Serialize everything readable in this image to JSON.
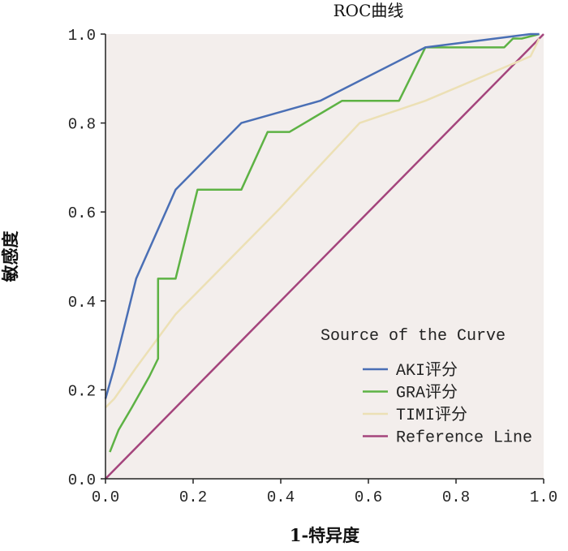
{
  "chart_data": {
    "type": "line",
    "title": "ROC曲线",
    "xlabel": "1-特异度",
    "ylabel": "敏感度",
    "xlim": [
      0,
      1
    ],
    "ylim": [
      0,
      1
    ],
    "x_ticks": [
      "0.0",
      "0.2",
      "0.4",
      "0.6",
      "0.8",
      "1.0"
    ],
    "y_ticks": [
      "0.0",
      "0.2",
      "0.4",
      "0.6",
      "0.8",
      "1.0"
    ],
    "grid": false,
    "plot_background": "#f3eeec",
    "legend": {
      "title": "Source of the Curve",
      "position": "bottom-right"
    },
    "series": [
      {
        "name": "AKI评分",
        "color": "#4a6fb5",
        "x": [
          0.0,
          0.02,
          0.07,
          0.16,
          0.31,
          0.49,
          0.73,
          0.93,
          0.97,
          0.99
        ],
        "y": [
          0.18,
          0.25,
          0.45,
          0.65,
          0.8,
          0.85,
          0.97,
          0.995,
          1.0,
          1.0
        ]
      },
      {
        "name": "GRA评分",
        "color": "#5db244",
        "x": [
          0.01,
          0.03,
          0.06,
          0.1,
          0.12,
          0.12,
          0.16,
          0.21,
          0.31,
          0.37,
          0.42,
          0.54,
          0.67,
          0.73,
          0.76,
          0.86,
          0.91,
          0.93,
          0.95,
          0.99
        ],
        "y": [
          0.06,
          0.11,
          0.16,
          0.23,
          0.27,
          0.45,
          0.45,
          0.65,
          0.65,
          0.78,
          0.78,
          0.85,
          0.85,
          0.97,
          0.97,
          0.97,
          0.97,
          0.99,
          0.99,
          1.0
        ]
      },
      {
        "name": "TIMI评分",
        "color": "#ece0b5",
        "x": [
          0.0,
          0.02,
          0.07,
          0.16,
          0.4,
          0.58,
          0.73,
          0.97,
          0.99
        ],
        "y": [
          0.16,
          0.18,
          0.25,
          0.37,
          0.61,
          0.8,
          0.85,
          0.95,
          0.99
        ]
      },
      {
        "name": "Reference Line",
        "color": "#a4447c",
        "x": [
          0.0,
          1.0
        ],
        "y": [
          0.0,
          1.0
        ]
      }
    ]
  }
}
